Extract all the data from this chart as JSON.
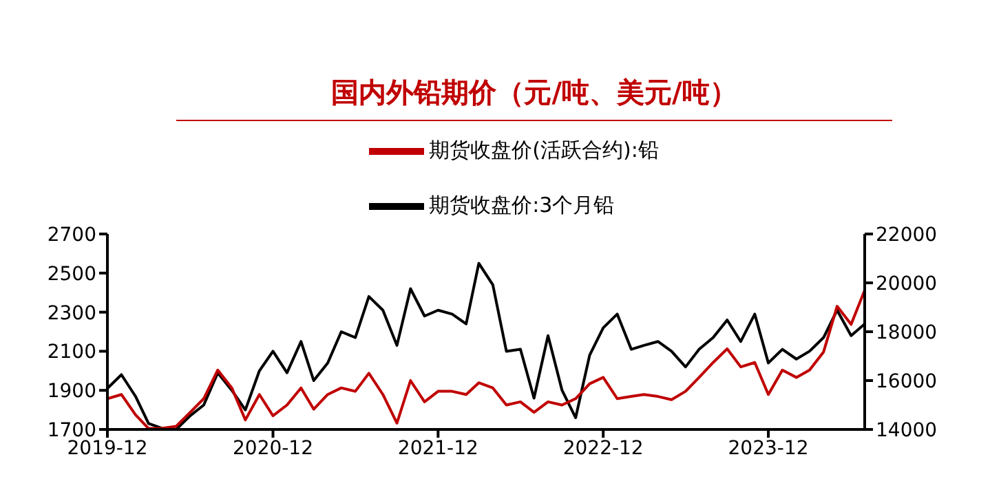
{
  "chart_data": {
    "type": "line",
    "title": "国内外铅期价（元/吨、美元/吨）",
    "x": [
      "2019-12",
      "2020-01",
      "2020-02",
      "2020-03",
      "2020-04",
      "2020-05",
      "2020-06",
      "2020-07",
      "2020-08",
      "2020-09",
      "2020-10",
      "2020-11",
      "2020-12",
      "2021-01",
      "2021-02",
      "2021-03",
      "2021-04",
      "2021-05",
      "2021-06",
      "2021-07",
      "2021-08",
      "2021-09",
      "2021-10",
      "2021-11",
      "2021-12",
      "2022-01",
      "2022-02",
      "2022-03",
      "2022-04",
      "2022-05",
      "2022-06",
      "2022-07",
      "2022-08",
      "2022-09",
      "2022-10",
      "2022-11",
      "2022-12",
      "2023-01",
      "2023-02",
      "2023-03",
      "2023-04",
      "2023-05",
      "2023-06",
      "2023-07",
      "2023-08",
      "2023-09",
      "2023-10",
      "2023-11",
      "2023-12",
      "2024-01",
      "2024-02",
      "2024-03",
      "2024-04",
      "2024-05",
      "2024-06",
      "2024-07"
    ],
    "series": [
      {
        "name": "期货收盘价:3个月铅",
        "color": "#000000",
        "values": [
          1910,
          1980,
          1870,
          1730,
          1705,
          1700,
          1770,
          1825,
          1990,
          1900,
          1800,
          2000,
          2100,
          1990,
          2150,
          1950,
          2040,
          2200,
          2170,
          2380,
          2310,
          2130,
          2420,
          2280,
          2310,
          2290,
          2240,
          2550,
          2440,
          2100,
          2110,
          1860,
          2180,
          1900,
          1760,
          2080,
          2220,
          2290,
          2110,
          2130,
          2150,
          2100,
          2020,
          2110,
          2170,
          2260,
          2150,
          2290,
          2040,
          2110,
          2060,
          2100,
          2170,
          2310,
          2180,
          2240
        ]
      },
      {
        "name": "期货收盘价(活跃合约):铅",
        "color": "#c00000",
        "axis": "y2",
        "values": [
          15260,
          15430,
          14600,
          14040,
          14050,
          14130,
          14700,
          15260,
          16430,
          15700,
          14390,
          15430,
          14560,
          15000,
          15700,
          14830,
          15430,
          15700,
          15560,
          16300,
          15430,
          14260,
          16000,
          15130,
          15560,
          15560,
          15430,
          15910,
          15700,
          15000,
          15130,
          14700,
          15130,
          15000,
          15260,
          15870,
          16130,
          15260,
          15350,
          15430,
          15350,
          15220,
          15560,
          16130,
          16740,
          17300,
          16560,
          16740,
          15430,
          16430,
          16130,
          16430,
          17170,
          19040,
          18300,
          19700
        ]
      }
    ],
    "xlim": [
      "2019-12",
      "2024-07"
    ],
    "xticks": [
      "2019-12",
      "2020-12",
      "2021-12",
      "2022-12",
      "2023-12"
    ],
    "ylim": [
      1700,
      2700
    ],
    "yticks": [
      1700,
      1900,
      2100,
      2300,
      2500,
      2700
    ],
    "y2lim": [
      14000,
      22000
    ],
    "y2ticks": [
      14000,
      16000,
      18000,
      20000,
      22000
    ],
    "legend": "top",
    "grid": false,
    "marker": "none",
    "line_style": "solid"
  }
}
